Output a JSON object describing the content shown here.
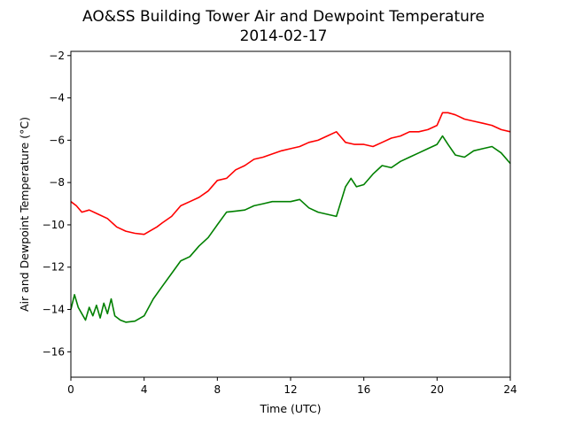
{
  "chart_data": {
    "type": "line",
    "title": "AO&SS Building Tower Air and Dewpoint Temperature",
    "subtitle": "2014-02-17",
    "xlabel": "Time (UTC)",
    "ylabel": "Air and Dewpoint Temperature (°C)",
    "xlim": [
      0,
      24
    ],
    "ylim": [
      -17.2,
      -1.8
    ],
    "x_ticks": [
      0,
      4,
      8,
      12,
      16,
      20,
      24
    ],
    "y_ticks": [
      -16,
      -14,
      -12,
      -10,
      -8,
      -6,
      -4,
      -2
    ],
    "grid": false,
    "legend": "none",
    "series": [
      {
        "color": "#ff0000",
        "x": [
          0,
          0.3,
          0.6,
          1.0,
          1.5,
          2.0,
          2.5,
          3.0,
          3.5,
          4.0,
          4.3,
          4.7,
          5.0,
          5.5,
          6.0,
          6.5,
          7.0,
          7.5,
          8.0,
          8.5,
          9.0,
          9.5,
          10.0,
          10.5,
          11.0,
          11.5,
          12.0,
          12.5,
          13.0,
          13.5,
          14.0,
          14.5,
          15.0,
          15.5,
          16.0,
          16.5,
          17.0,
          17.5,
          18.0,
          18.5,
          19.0,
          19.5,
          20.0,
          20.3,
          20.6,
          21.0,
          21.5,
          22.0,
          22.5,
          23.0,
          23.5,
          24.0
        ],
        "values": [
          -8.9,
          -9.1,
          -9.4,
          -9.3,
          -9.5,
          -9.7,
          -10.1,
          -10.3,
          -10.4,
          -10.45,
          -10.3,
          -10.1,
          -9.9,
          -9.6,
          -9.1,
          -8.9,
          -8.7,
          -8.4,
          -7.9,
          -7.8,
          -7.4,
          -7.2,
          -6.9,
          -6.8,
          -6.65,
          -6.5,
          -6.4,
          -6.3,
          -6.1,
          -6.0,
          -5.8,
          -5.6,
          -6.1,
          -6.2,
          -6.2,
          -6.3,
          -6.1,
          -5.9,
          -5.8,
          -5.6,
          -5.6,
          -5.5,
          -5.3,
          -4.7,
          -4.7,
          -4.8,
          -5.0,
          -5.1,
          -5.2,
          -5.3,
          -5.5,
          -5.6
        ]
      },
      {
        "color": "#008000",
        "x": [
          0,
          0.2,
          0.4,
          0.6,
          0.8,
          1.0,
          1.2,
          1.4,
          1.6,
          1.8,
          2.0,
          2.2,
          2.4,
          2.7,
          3.0,
          3.5,
          4.0,
          4.5,
          5.0,
          5.5,
          6.0,
          6.5,
          7.0,
          7.5,
          8.0,
          8.5,
          9.0,
          9.5,
          10.0,
          10.5,
          11.0,
          11.5,
          12.0,
          12.5,
          13.0,
          13.5,
          14.0,
          14.5,
          15.0,
          15.3,
          15.6,
          16.0,
          16.5,
          17.0,
          17.5,
          18.0,
          18.5,
          19.0,
          19.5,
          20.0,
          20.3,
          20.6,
          21.0,
          21.5,
          22.0,
          22.5,
          23.0,
          23.5,
          24.0
        ],
        "values": [
          -14.0,
          -13.3,
          -13.9,
          -14.2,
          -14.5,
          -13.9,
          -14.3,
          -13.8,
          -14.4,
          -13.7,
          -14.2,
          -13.5,
          -14.3,
          -14.5,
          -14.6,
          -14.55,
          -14.3,
          -13.5,
          -12.9,
          -12.3,
          -11.7,
          -11.5,
          -11.0,
          -10.6,
          -10.0,
          -9.4,
          -9.35,
          -9.3,
          -9.1,
          -9.0,
          -8.9,
          -8.9,
          -8.9,
          -8.8,
          -9.2,
          -9.4,
          -9.5,
          -9.6,
          -8.2,
          -7.8,
          -8.2,
          -8.1,
          -7.6,
          -7.2,
          -7.3,
          -7.0,
          -6.8,
          -6.6,
          -6.4,
          -6.2,
          -5.8,
          -6.2,
          -6.7,
          -6.8,
          -6.5,
          -6.4,
          -6.3,
          -6.6,
          -7.1
        ]
      }
    ]
  }
}
